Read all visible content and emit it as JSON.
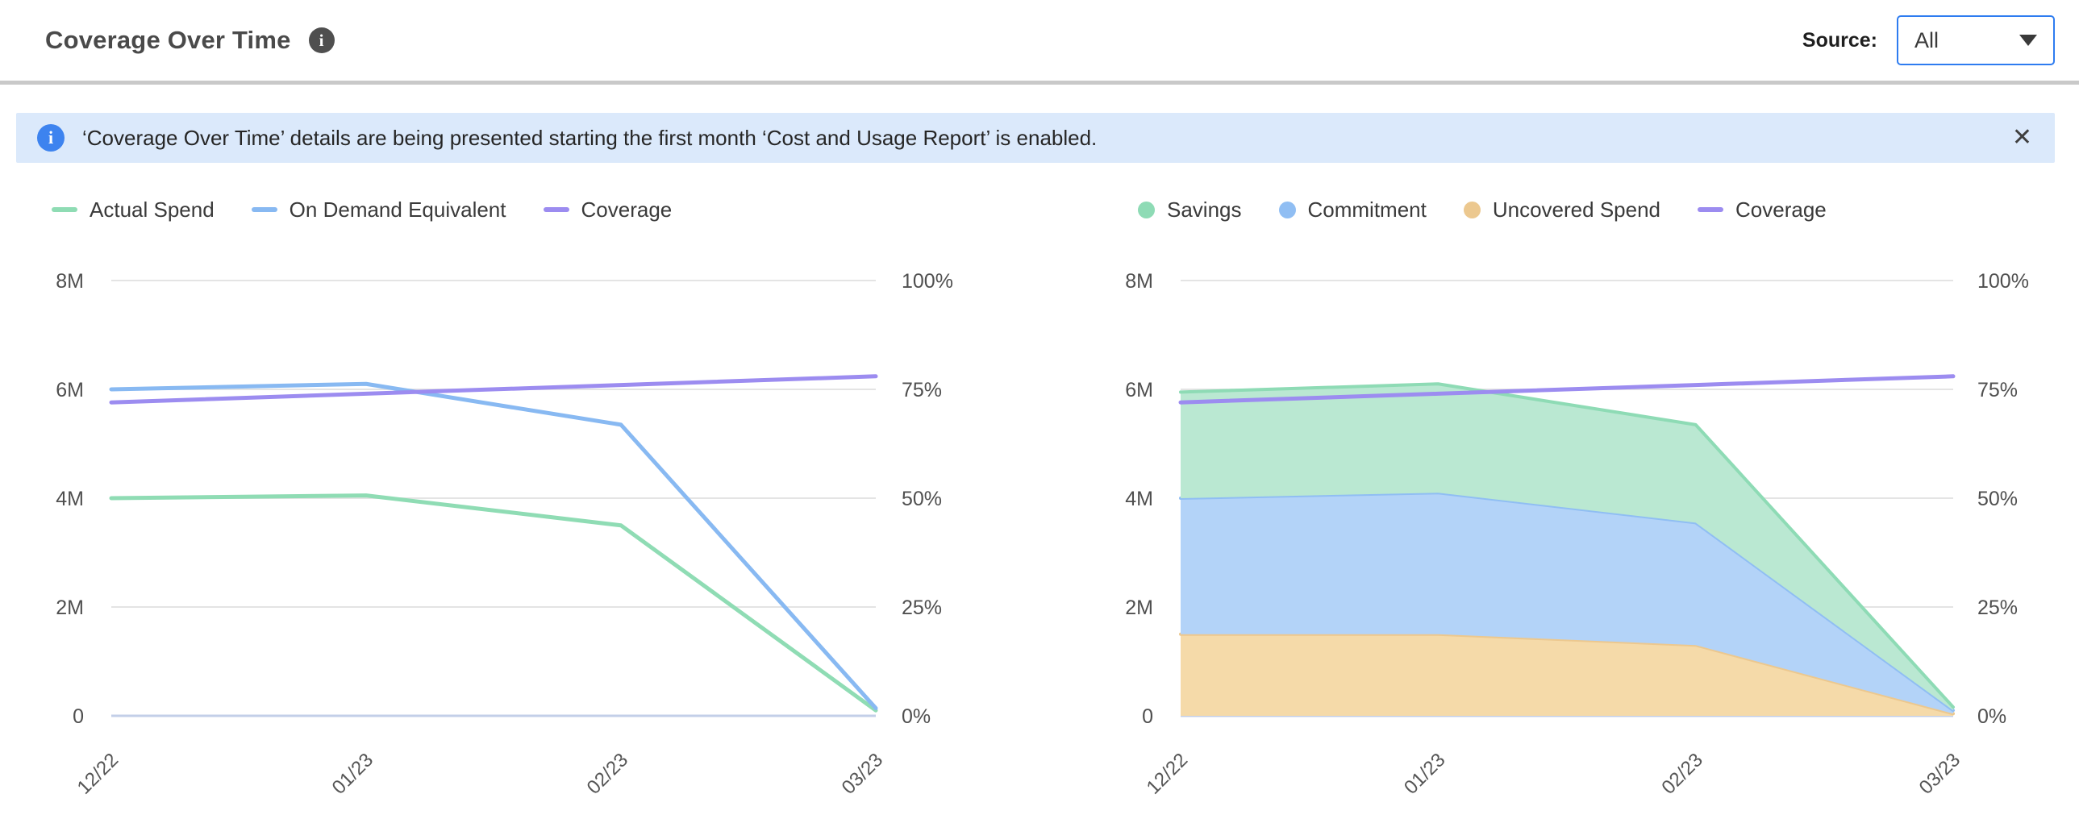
{
  "header": {
    "title": "Coverage Over Time",
    "title_info_icon": "i",
    "source_label": "Source:",
    "source_value": "All",
    "dropdown_border_color": "#2e7cf0"
  },
  "banner": {
    "icon_glyph": "i",
    "text": "‘Coverage Over Time’ details are being presented starting the first month ‘Cost and Usage Report’ is enabled.",
    "close_glyph": "✕",
    "bg_color": "#dbe9fb",
    "icon_color": "#3d83ef"
  },
  "chart_style": {
    "grid_color": "#e4e4e4",
    "zero_line_color": "#c3cfe8",
    "axis_text_color": "#4f4f4f"
  },
  "chart_data": [
    {
      "id": "spend-coverage-lines",
      "type": "line",
      "title": "",
      "categories": [
        "12/22",
        "01/23",
        "02/23",
        "03/23"
      ],
      "series": [
        {
          "name": "Actual Spend",
          "type": "line",
          "axis": "left",
          "values": [
            4.0,
            4.05,
            3.5,
            0.1
          ],
          "color": "#8fdcb4",
          "legend_swatch": "line"
        },
        {
          "name": "On Demand Equivalent",
          "type": "line",
          "axis": "left",
          "values": [
            6.0,
            6.1,
            5.35,
            0.14
          ],
          "color": "#88b9f2",
          "legend_swatch": "line"
        },
        {
          "name": "Coverage",
          "type": "line",
          "axis": "right",
          "values": [
            72,
            74,
            76,
            78
          ],
          "color": "#9c8cf0",
          "legend_swatch": "line"
        }
      ],
      "left_axis": {
        "max": 8,
        "unit": "M",
        "ticks": [
          {
            "value": 8,
            "label": "8M"
          },
          {
            "value": 6,
            "label": "6M"
          },
          {
            "value": 4,
            "label": "4M"
          },
          {
            "value": 2,
            "label": "2M"
          },
          {
            "value": 0,
            "label": "0"
          }
        ]
      },
      "right_axis": {
        "max": 100,
        "unit": "%",
        "ticks": [
          {
            "value": 100,
            "label": "100%"
          },
          {
            "value": 75,
            "label": "75%"
          },
          {
            "value": 50,
            "label": "50%"
          },
          {
            "value": 25,
            "label": "25%"
          },
          {
            "value": 0,
            "label": "0%"
          }
        ]
      },
      "grid": "horizontal",
      "legend_position": "top-left"
    },
    {
      "id": "savings-stacked-areas",
      "type": "area",
      "stacked": true,
      "title": "",
      "categories": [
        "12/22",
        "01/23",
        "02/23",
        "03/23"
      ],
      "series": [
        {
          "name": "Savings",
          "type": "area",
          "stack": 3,
          "axis": "left",
          "values": [
            1.95,
            2.0,
            1.8,
            0.06
          ],
          "color": "#8edbb5",
          "fill": "#bae8d2",
          "legend_swatch": "dot"
        },
        {
          "name": "Commitment",
          "type": "area",
          "stack": 2,
          "axis": "left",
          "values": [
            2.5,
            2.6,
            2.25,
            0.06
          ],
          "color": "#90bef3",
          "fill": "#b3d3f8",
          "legend_swatch": "dot"
        },
        {
          "name": "Uncovered Spend",
          "type": "area",
          "stack": 1,
          "axis": "left",
          "values": [
            1.5,
            1.5,
            1.3,
            0.04
          ],
          "color": "#ecc88f",
          "fill": "#f5daa9",
          "legend_swatch": "dot"
        },
        {
          "name": "Coverage",
          "type": "line",
          "axis": "right",
          "values": [
            72,
            74,
            76,
            78
          ],
          "color": "#9c8cf0",
          "legend_swatch": "line"
        }
      ],
      "left_axis": {
        "max": 8,
        "unit": "M",
        "ticks": [
          {
            "value": 8,
            "label": "8M"
          },
          {
            "value": 6,
            "label": "6M"
          },
          {
            "value": 4,
            "label": "4M"
          },
          {
            "value": 2,
            "label": "2M"
          },
          {
            "value": 0,
            "label": "0"
          }
        ]
      },
      "right_axis": {
        "max": 100,
        "unit": "%",
        "ticks": [
          {
            "value": 100,
            "label": "100%"
          },
          {
            "value": 75,
            "label": "75%"
          },
          {
            "value": 50,
            "label": "50%"
          },
          {
            "value": 25,
            "label": "25%"
          },
          {
            "value": 0,
            "label": "0%"
          }
        ]
      },
      "grid": "horizontal",
      "legend_position": "top-left"
    }
  ]
}
